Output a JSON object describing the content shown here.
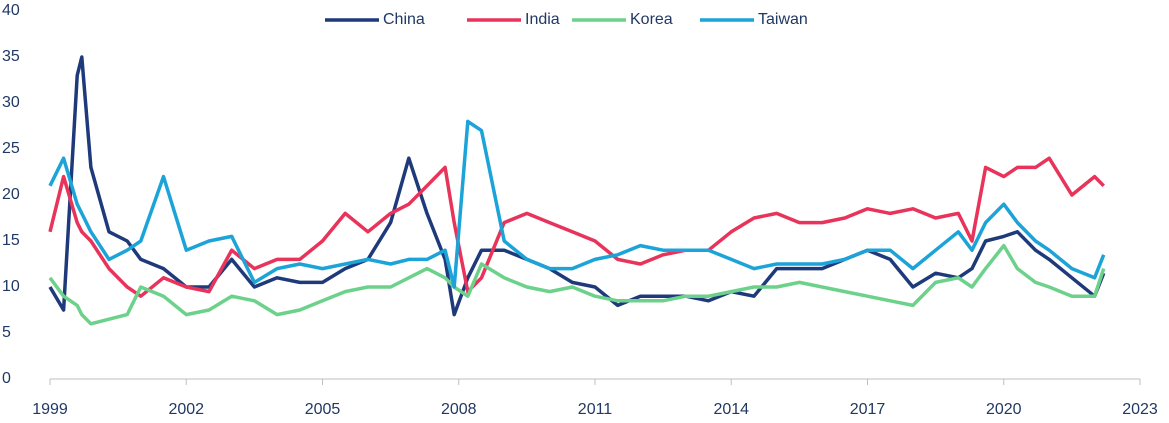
{
  "chart_data": {
    "type": "line",
    "x": [
      1999.0,
      1999.3,
      1999.6,
      1999.7,
      1999.9,
      2000.3,
      2000.7,
      2001.0,
      2001.5,
      2002.0,
      2002.5,
      2003.0,
      2003.5,
      2004.0,
      2004.5,
      2005.0,
      2005.5,
      2006.0,
      2006.5,
      2006.9,
      2007.3,
      2007.7,
      2007.9,
      2008.2,
      2008.5,
      2009.0,
      2009.5,
      2010.0,
      2010.5,
      2011.0,
      2011.5,
      2012.0,
      2012.5,
      2013.0,
      2013.5,
      2014.0,
      2014.5,
      2015.0,
      2015.5,
      2016.0,
      2016.5,
      2017.0,
      2017.5,
      2018.0,
      2018.5,
      2019.0,
      2019.3,
      2019.6,
      2020.0,
      2020.3,
      2020.7,
      2021.0,
      2021.5,
      2022.0,
      2022.2
    ],
    "series": [
      {
        "name": "China",
        "color": "#1f3a7a",
        "values": [
          10,
          7.5,
          33,
          35,
          23,
          16,
          15,
          13,
          12,
          10,
          10,
          13,
          10,
          11,
          10.5,
          10.5,
          12,
          13,
          17,
          24,
          18,
          13,
          7,
          11,
          14,
          14,
          13,
          12,
          10.5,
          10,
          8,
          9,
          9,
          9,
          8.5,
          9.5,
          9,
          12,
          12,
          12,
          13,
          14,
          13,
          10,
          11.5,
          11,
          12,
          15,
          15.5,
          16,
          14,
          13,
          11,
          9,
          11.5
        ]
      },
      {
        "name": "India",
        "color": "#e8335a",
        "values": [
          16,
          22,
          17,
          16,
          15,
          12,
          10,
          9,
          11,
          10,
          9.5,
          14,
          12,
          13,
          13,
          15,
          18,
          16,
          18,
          19,
          21,
          23,
          17,
          9.5,
          11,
          17,
          18,
          17,
          16,
          15,
          13,
          12.5,
          13.5,
          14,
          14,
          16,
          17.5,
          18,
          17,
          17,
          17.5,
          18.5,
          18,
          18.5,
          17.5,
          18,
          15,
          23,
          22,
          23,
          23,
          24,
          20,
          22,
          21
        ]
      },
      {
        "name": "Korea",
        "color": "#6cd18a",
        "values": [
          11,
          9,
          8,
          7,
          6,
          6.5,
          7,
          10,
          9,
          7,
          7.5,
          9,
          8.5,
          7,
          7.5,
          8.5,
          9.5,
          10,
          10,
          11,
          12,
          11,
          10,
          9,
          12.5,
          11,
          10,
          9.5,
          10,
          9,
          8.5,
          8.5,
          8.5,
          9,
          9,
          9.5,
          10,
          10,
          10.5,
          10,
          9.5,
          9,
          8.5,
          8,
          10.5,
          11,
          10,
          12,
          14.5,
          12,
          10.5,
          10,
          9,
          9,
          12
        ]
      },
      {
        "name": "Taiwan",
        "color": "#1ca3d8",
        "values": [
          21,
          24,
          19,
          18,
          16,
          13,
          14,
          15,
          22,
          14,
          15,
          15.5,
          10.5,
          12,
          12.5,
          12,
          12.5,
          13,
          12.5,
          13,
          13,
          14,
          10,
          28,
          27,
          15,
          13,
          12,
          12,
          13,
          13.5,
          14.5,
          14,
          14,
          14,
          13,
          12,
          12.5,
          12.5,
          12.5,
          13,
          14,
          14,
          12,
          14,
          16,
          14,
          17,
          19,
          17,
          15,
          14,
          12,
          11,
          13.5
        ]
      }
    ],
    "xlim": [
      1999,
      2023
    ],
    "xticks": [
      1999,
      2002,
      2005,
      2008,
      2011,
      2014,
      2017,
      2020,
      2023
    ],
    "ylim": [
      0,
      40
    ],
    "yticks": [
      0,
      5,
      10,
      15,
      20,
      25,
      30,
      35,
      40
    ],
    "legend": "top"
  }
}
